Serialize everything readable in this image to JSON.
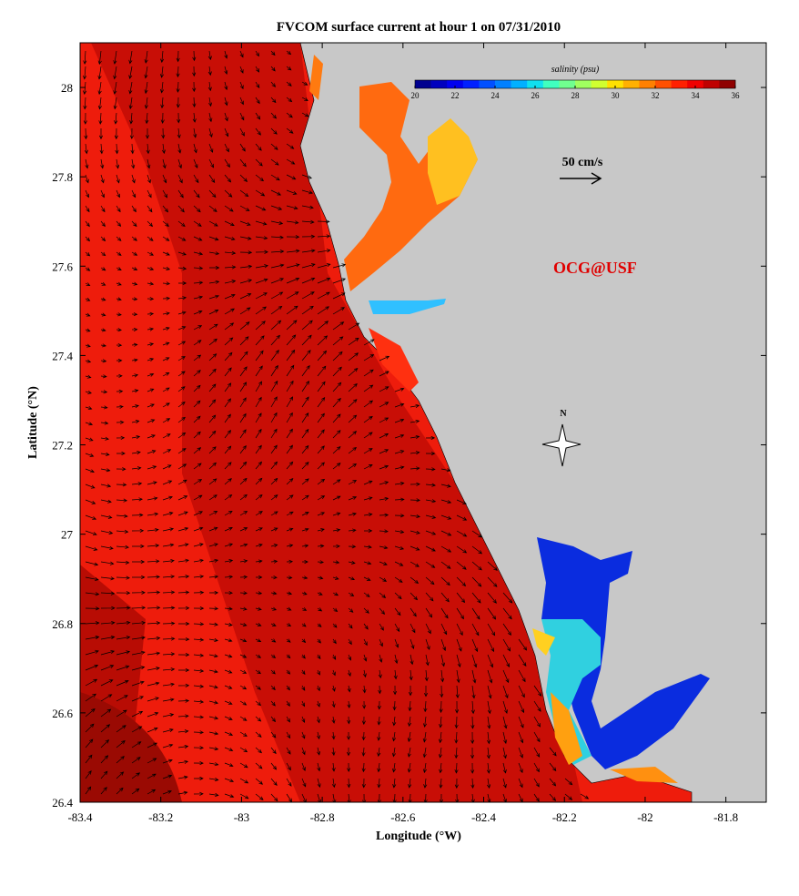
{
  "chart_data": {
    "type": "map",
    "title": "FVCOM surface current at hour 1 on 07/31/2010",
    "x_label": "Longitude (°W)",
    "y_label": "Latitude (°N)",
    "xlim": [
      -83.4,
      -81.7
    ],
    "ylim": [
      26.4,
      28.1
    ],
    "xticks": [
      -83.4,
      -83.2,
      -83,
      -82.8,
      -82.6,
      -82.4,
      -82.2,
      -82,
      -81.8
    ],
    "yticks": [
      26.4,
      26.6,
      26.8,
      27,
      27.2,
      27.4,
      27.6,
      27.8,
      28
    ],
    "colorbar": {
      "label": "salinity (psu)",
      "lim": [
        20,
        36
      ],
      "ticks": [
        20,
        22,
        24,
        26,
        28,
        30,
        32,
        34,
        36
      ],
      "colors": [
        "#00008f",
        "#0000bf",
        "#0000ef",
        "#0020ff",
        "#0050ff",
        "#0080ff",
        "#00b0ff",
        "#10e0ef",
        "#40ffbf",
        "#70ff8f",
        "#a0ff60",
        "#d0ff30",
        "#ffe000",
        "#ffb000",
        "#ff8000",
        "#ff5000",
        "#ff2000",
        "#ef0000",
        "#bf0000",
        "#8f0000"
      ]
    },
    "scale_label": "50 cm/s",
    "credit": "OCG@USF",
    "north_label": "N"
  }
}
